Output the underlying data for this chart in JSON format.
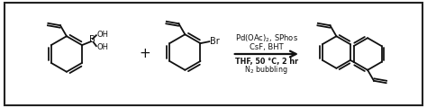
{
  "fig_width": 4.74,
  "fig_height": 1.2,
  "dpi": 100,
  "background_color": "#ffffff",
  "border_color": "#222222",
  "line_color": "#111111",
  "line_width": 1.3,
  "reagents_line1": "Pd(OAc)$_2$, SPhos",
  "reagents_line2": "CsF, BHT",
  "conditions_line1": "THF, 50 °C, 2 hr",
  "conditions_line2": "N$_2$ bubbling",
  "plus_sign": "+",
  "font_size_reagents": 6.0,
  "font_size_conditions": 5.8,
  "font_size_label": 7.0
}
